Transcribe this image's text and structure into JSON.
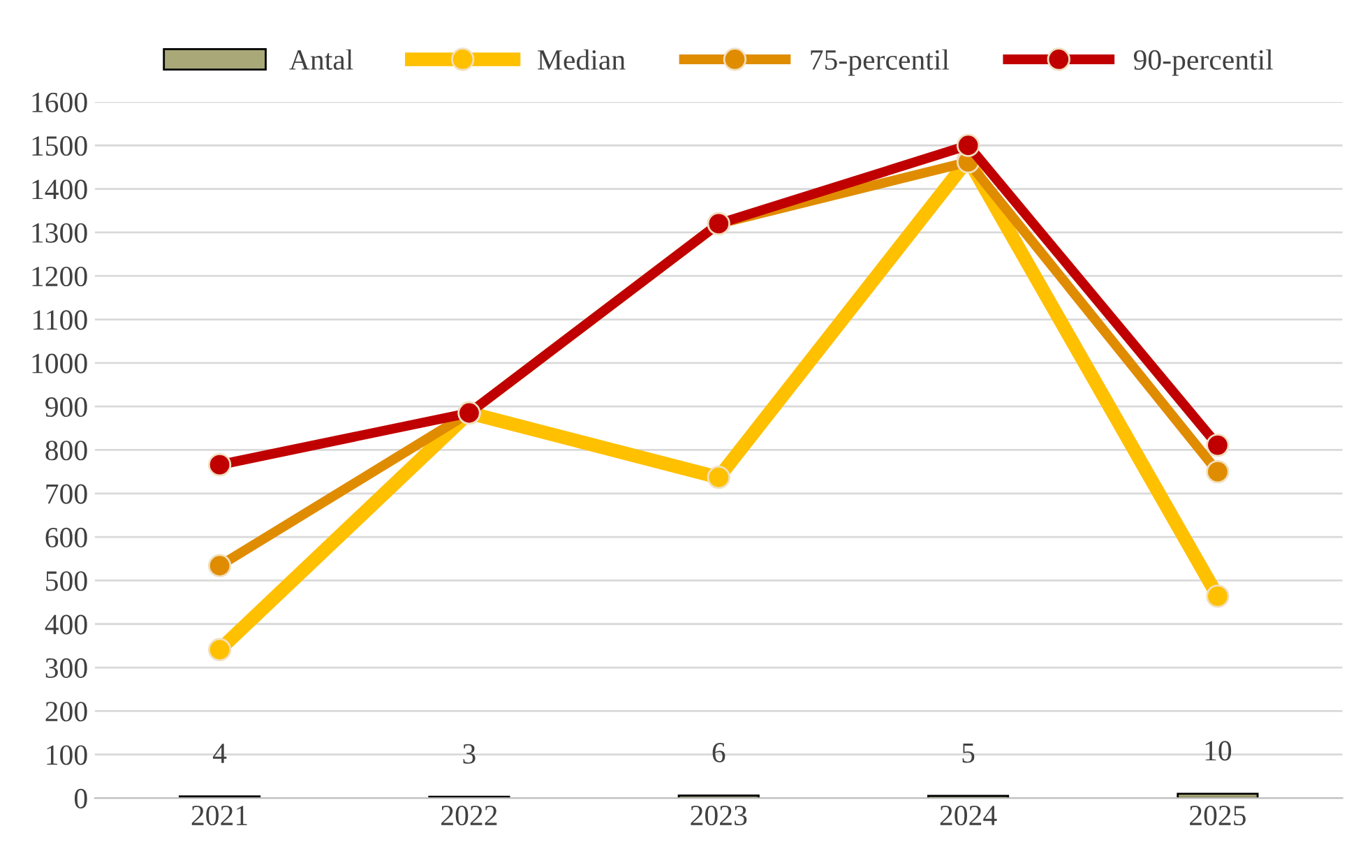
{
  "chart_data": {
    "type": "line",
    "categories": [
      "2021",
      "2022",
      "2023",
      "2024",
      "2025"
    ],
    "series": [
      {
        "name": "Antal",
        "type": "bar",
        "color": "#a9a878",
        "values": [
          4,
          3,
          6,
          5,
          10
        ],
        "data_labels": true
      },
      {
        "name": "Median",
        "color": "#ffc000",
        "values": [
          341,
          885,
          737,
          1468,
          464
        ]
      },
      {
        "name": "75-percentil",
        "color": "#e08c00",
        "values": [
          534,
          885,
          1320,
          1462,
          750
        ]
      },
      {
        "name": "90-percentil",
        "color": "#c00000",
        "values": [
          766,
          885,
          1320,
          1500,
          811
        ]
      }
    ],
    "ylim": [
      0,
      1600
    ],
    "yticks": [
      0,
      100,
      200,
      300,
      400,
      500,
      600,
      700,
      800,
      900,
      1000,
      1100,
      1200,
      1300,
      1400,
      1500,
      1600
    ],
    "grid": "y",
    "legend": "top",
    "marker": "circle",
    "line_style": "solid"
  }
}
